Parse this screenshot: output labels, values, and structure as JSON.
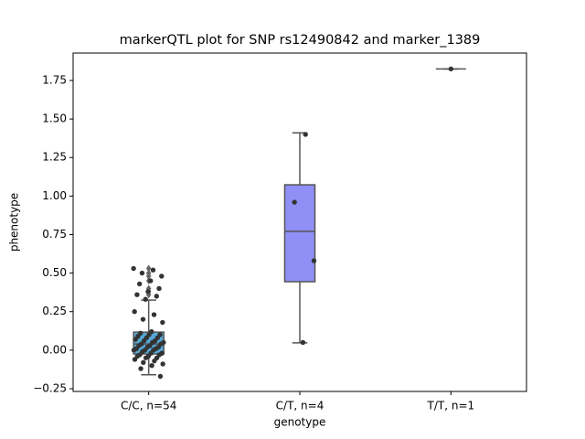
{
  "chart_data": {
    "type": "box",
    "title": "markerQTL plot for SNP rs12490842 and marker_1389",
    "x_label": "genotype",
    "y_label": "phenotype",
    "categories": [
      "C/C, n=54",
      "C/T, n=4",
      "T/T, n=1"
    ],
    "ylim": [
      -0.268,
      1.928
    ],
    "yticks": [
      {
        "value": -0.25,
        "label": "−0.25"
      },
      {
        "value": 0,
        "label": "0.00"
      },
      0.25,
      {
        "value": 0.5,
        "label": "0.50"
      },
      0.75,
      {
        "value": 1,
        "label": "1.00"
      },
      1.25,
      {
        "value": 1.5,
        "label": "1.50"
      },
      1.75
    ],
    "boxes": [
      {
        "color": "#56a8d6",
        "whislo": -0.16,
        "q1": -0.025,
        "median": 0.04,
        "q3": 0.117,
        "whishi": 0.325,
        "fliers": [
          0.36,
          0.38,
          0.4,
          0.45,
          0.48,
          0.5,
          0.53
        ]
      },
      {
        "color": "#8f8ff5",
        "whislo": 0.047,
        "q1": 0.444,
        "median": 0.771,
        "q3": 1.073,
        "whishi": 1.41,
        "fliers": []
      },
      {
        "color": "#b48ef0",
        "whislo": 1.825,
        "q1": 1.825,
        "median": 1.825,
        "q3": 1.825,
        "whishi": 1.825,
        "fliers": []
      }
    ],
    "points": [
      [
        0.53,
        0.52,
        0.5,
        0.48,
        0.45,
        0.43,
        0.4,
        0.38,
        0.36,
        0.35,
        0.33,
        0.25,
        0.23,
        0.2,
        0.18,
        0.12,
        0.11,
        0.1,
        0.1,
        0.09,
        0.08,
        0.08,
        0.07,
        0.06,
        0.06,
        0.05,
        0.05,
        0.04,
        0.04,
        0.03,
        0.03,
        0.02,
        0.02,
        0.01,
        0.01,
        0,
        0,
        0,
        -0.01,
        -0.02,
        -0.02,
        -0.03,
        -0.03,
        -0.04,
        -0.04,
        -0.05,
        -0.05,
        -0.06,
        -0.07,
        -0.08,
        -0.09,
        -0.1,
        -0.12,
        -0.17
      ],
      [
        1.4,
        0.96,
        0.58,
        0.05
      ],
      [
        1.825
      ]
    ],
    "point_color": "#333333"
  }
}
